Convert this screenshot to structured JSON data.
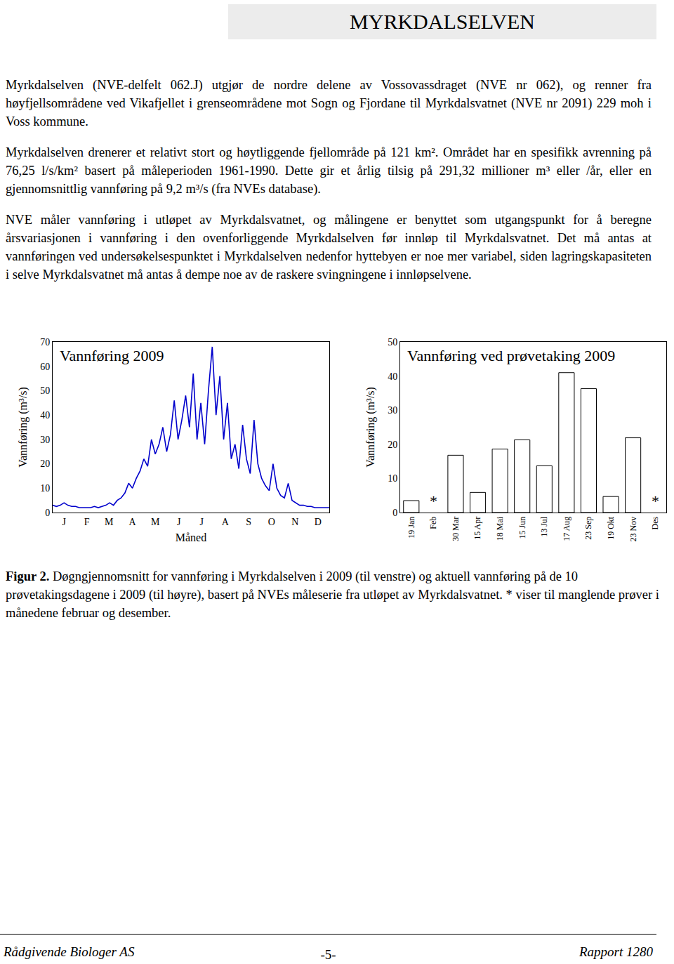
{
  "header": {
    "title": "MYRKDALSELVEN"
  },
  "paragraphs": [
    "Myrkdalselven (NVE-delfelt 062.J) utgjør de nordre delene av Vossovassdraget (NVE nr 062), og renner fra høyfjellsområdene ved Vikafjellet i grenseområdene mot Sogn og Fjordane til Myrkdalsvatnet (NVE nr 2091) 229 moh i Voss kommune.",
    "Myrkdalselven drenerer et relativt stort og høytliggende fjellområde på 121 km². Området har en spesifikk avrenning på 76,25 l/s/km² basert på måleperioden 1961-1990. Dette gir et årlig tilsig på 291,32 millioner m³ eller /år, eller en gjennomsnittlig vannføring på 9,2 m³/s (fra NVEs database).",
    "NVE måler vannføring i utløpet av Myrkdalsvatnet, og målingene er benyttet som utgangspunkt for å beregne årsvariasjonen i vannføring i den ovenforliggende Myrkdalselven før innløp til Myrkdalsvatnet. Det må antas at vannføringen ved undersøkelsespunktet i Myrkdalselven nedenfor hyttebyen er noe mer variabel, siden lagringskapasiteten i selve Myrkdalsvatnet må antas å dempe noe av de raskere svingningene i innløpselvene."
  ],
  "chart_data": [
    {
      "type": "line",
      "title": "Vannføring 2009",
      "x_label": "Måned",
      "y_label": "Vannføring (m³/s)",
      "x": [
        1,
        6,
        11,
        16,
        21,
        26,
        31,
        36,
        41,
        46,
        51,
        56,
        61,
        66,
        71,
        76,
        81,
        86,
        91,
        96,
        101,
        106,
        111,
        116,
        121,
        126,
        131,
        136,
        141,
        146,
        151,
        156,
        161,
        166,
        171,
        176,
        181,
        186,
        191,
        196,
        201,
        206,
        211,
        216,
        221,
        226,
        231,
        236,
        241,
        246,
        251,
        256,
        261,
        266,
        271,
        276,
        281,
        286,
        291,
        296,
        301,
        306,
        311,
        316,
        321,
        326,
        331,
        336,
        341,
        346,
        351,
        356,
        361,
        365
      ],
      "values": [
        3,
        2.5,
        3,
        4,
        3,
        2.5,
        2.5,
        2,
        2,
        2,
        2,
        2.5,
        2,
        2.5,
        3,
        4,
        3,
        5,
        6,
        8,
        12,
        10,
        14,
        17,
        22,
        19,
        30,
        24,
        28,
        35,
        25,
        32,
        46,
        30,
        38,
        48,
        35,
        57,
        30,
        45,
        28,
        50,
        68,
        40,
        56,
        30,
        45,
        22,
        28,
        18,
        36,
        22,
        16,
        38,
        20,
        14,
        11,
        9,
        20,
        10,
        7,
        6,
        12,
        5,
        4,
        3,
        3,
        2.5,
        2.5,
        2,
        2,
        2,
        2,
        2
      ],
      "color": "#0000cc",
      "xlim": [
        1,
        365
      ],
      "xticks": [
        {
          "value": 16,
          "label": "J"
        },
        {
          "value": 46,
          "label": "F"
        },
        {
          "value": 75,
          "label": "M"
        },
        {
          "value": 106,
          "label": "A"
        },
        {
          "value": 136,
          "label": "M"
        },
        {
          "value": 167,
          "label": "J"
        },
        {
          "value": 197,
          "label": "J"
        },
        {
          "value": 228,
          "label": "A"
        },
        {
          "value": 259,
          "label": "S"
        },
        {
          "value": 289,
          "label": "O"
        },
        {
          "value": 320,
          "label": "N"
        },
        {
          "value": 350,
          "label": "D"
        }
      ],
      "ylim": [
        0,
        70
      ],
      "yticks": [
        0,
        10,
        20,
        30,
        40,
        50,
        60,
        70
      ],
      "grid": false
    },
    {
      "type": "bar",
      "title": "Vannføring ved prøvetaking 2009",
      "y_label": "Vannføring (m³/s)",
      "categories": [
        "19 Jan",
        "Feb",
        "30 Mar",
        "15 Apr",
        "18 Mai",
        "15 Jun",
        "13 Jul",
        "17 Aug",
        "23 Sep",
        "19 Okt",
        "23 Nov",
        "Des"
      ],
      "values": [
        3.5,
        null,
        16.8,
        5.9,
        18.6,
        21.3,
        13.7,
        41,
        36.3,
        4.7,
        21.9,
        null
      ],
      "color": "#ffffff",
      "ylim": [
        0,
        50
      ],
      "yticks": [
        0,
        10,
        20,
        30,
        40,
        50
      ],
      "grid": false,
      "annotations": [
        {
          "category": "Feb",
          "text": "*"
        },
        {
          "category": "Des",
          "text": "*"
        }
      ]
    }
  ],
  "caption": {
    "label": "Figur 2.",
    "text": "Døgngjennomsnitt for vannføring i Myrkdalselven i 2009 (til venstre) og aktuell vannføring på de 10 prøvetakingsdagene i 2009 (til høyre), basert på NVEs måleserie fra utløpet av Myrkdalsvatnet. * viser til manglende prøver i månedene februar og desember."
  },
  "footer": {
    "left": "Rådgivende Biologer AS",
    "center": "-5-",
    "right": "Rapport 1280"
  }
}
